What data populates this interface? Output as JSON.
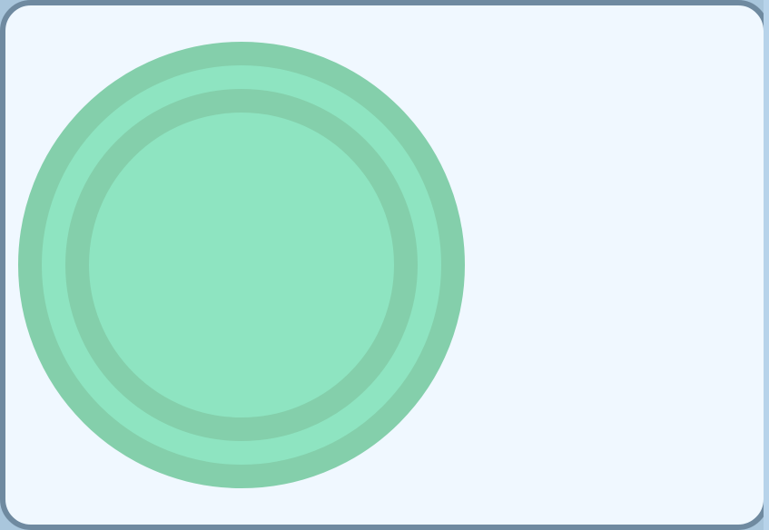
{
  "toggle": {
    "state": "off",
    "colors": {
      "track_background": "#f0f8ff",
      "track_border": "#6f8aa0",
      "knob_fill": "#8ee4c1",
      "knob_ring": "#84cfab",
      "page_background": "#a9c6dc"
    }
  }
}
